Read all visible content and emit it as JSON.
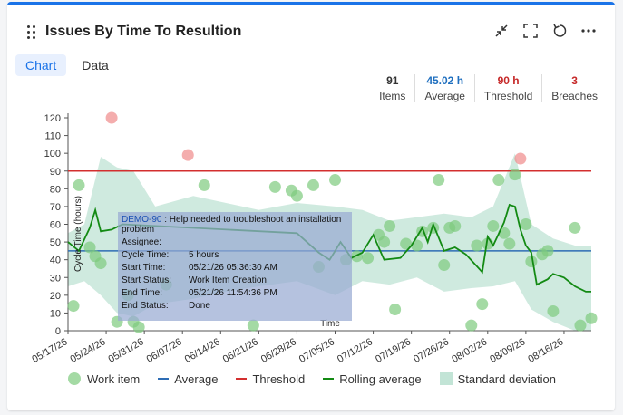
{
  "widget": {
    "title": "Issues By Time To Resultion"
  },
  "tabs": [
    {
      "label": "Chart",
      "active": true
    },
    {
      "label": "Data",
      "active": false
    }
  ],
  "stats": [
    {
      "value": "91",
      "label": "Items"
    },
    {
      "value": "45.02 h",
      "label": "Average"
    },
    {
      "value": "90 h",
      "label": "Threshold"
    },
    {
      "value": "3",
      "label": "Breaches"
    }
  ],
  "tooltip": {
    "id": "DEMO-90",
    "summary": ": Help needed to troubleshoot an installation problem",
    "rows": [
      {
        "k": "Assignee:",
        "v": ""
      },
      {
        "k": "Cycle Time:",
        "v": "5 hours"
      },
      {
        "k": "Start Time:",
        "v": "05/21/26 05:36:30 AM"
      },
      {
        "k": "Start Status:",
        "v": "Work Item Creation"
      },
      {
        "k": "End Time:",
        "v": "05/21/26 11:54:36 PM"
      },
      {
        "k": "End Status:",
        "v": "Done"
      }
    ]
  },
  "legend": [
    "Work item",
    "Average",
    "Threshold",
    "Rolling average",
    "Standard deviation"
  ],
  "colors": {
    "accent": "#1a73e8",
    "point": "#7dcb7d",
    "breach": "#f08a8a",
    "average": "#2e6db5",
    "threshold": "#d32f2f",
    "rolling": "#138a13",
    "std": "#a8d8c4"
  },
  "chart_data": {
    "type": "scatter",
    "ylabel": "Cycle Time (hours)",
    "xlabel": "Time",
    "ylim": [
      0,
      120
    ],
    "yticks": [
      0,
      10,
      20,
      30,
      40,
      50,
      60,
      70,
      80,
      90,
      100,
      110,
      120
    ],
    "xticks": [
      "05/17/26",
      "05/24/26",
      "05/31/26",
      "06/07/26",
      "06/14/26",
      "06/21/26",
      "06/28/26",
      "07/05/26",
      "07/12/26",
      "07/19/26",
      "07/26/26",
      "08/02/26",
      "08/09/26",
      "08/16/26"
    ],
    "x_start": "2026-05-17",
    "x_end": "2026-08-21",
    "average": 45.02,
    "threshold": 90,
    "points": [
      [
        "2026-05-18",
        14
      ],
      [
        "2026-05-19",
        82
      ],
      [
        "2026-05-21",
        47
      ],
      [
        "2026-05-22",
        42
      ],
      [
        "2026-05-23",
        38
      ],
      [
        "2026-05-25",
        120
      ],
      [
        "2026-05-26",
        5
      ],
      [
        "2026-05-28",
        20
      ],
      [
        "2026-05-29",
        5
      ],
      [
        "2026-05-30",
        2
      ],
      [
        "2026-06-04",
        26
      ],
      [
        "2026-06-08",
        99
      ],
      [
        "2026-06-11",
        82
      ],
      [
        "2026-06-20",
        3
      ],
      [
        "2026-06-24",
        81
      ],
      [
        "2026-06-27",
        79
      ],
      [
        "2026-06-28",
        76
      ],
      [
        "2026-07-01",
        82
      ],
      [
        "2026-07-02",
        36
      ],
      [
        "2026-07-05",
        85
      ],
      [
        "2026-07-07",
        40
      ],
      [
        "2026-07-09",
        42
      ],
      [
        "2026-07-11",
        41
      ],
      [
        "2026-07-13",
        54
      ],
      [
        "2026-07-14",
        50
      ],
      [
        "2026-07-15",
        59
      ],
      [
        "2026-07-16",
        12
      ],
      [
        "2026-07-18",
        49
      ],
      [
        "2026-07-20",
        48
      ],
      [
        "2026-07-21",
        56
      ],
      [
        "2026-07-23",
        58
      ],
      [
        "2026-07-24",
        85
      ],
      [
        "2026-07-25",
        37
      ],
      [
        "2026-07-26",
        58
      ],
      [
        "2026-07-27",
        59
      ],
      [
        "2026-07-30",
        3
      ],
      [
        "2026-07-31",
        48
      ],
      [
        "2026-08-01",
        15
      ],
      [
        "2026-08-02",
        49
      ],
      [
        "2026-08-03",
        59
      ],
      [
        "2026-08-04",
        85
      ],
      [
        "2026-08-05",
        55
      ],
      [
        "2026-08-06",
        49
      ],
      [
        "2026-08-07",
        88
      ],
      [
        "2026-08-08",
        97
      ],
      [
        "2026-08-09",
        60
      ],
      [
        "2026-08-10",
        39
      ],
      [
        "2026-08-12",
        43
      ],
      [
        "2026-08-13",
        45
      ],
      [
        "2026-08-14",
        11
      ],
      [
        "2026-08-18",
        58
      ],
      [
        "2026-08-19",
        3
      ],
      [
        "2026-08-21",
        7
      ]
    ],
    "rolling_average": [
      [
        "2026-05-17",
        50
      ],
      [
        "2026-05-19",
        45
      ],
      [
        "2026-05-21",
        58
      ],
      [
        "2026-05-22",
        68
      ],
      [
        "2026-05-23",
        56
      ],
      [
        "2026-05-25",
        57
      ],
      [
        "2026-05-27",
        60
      ],
      [
        "2026-06-28",
        55
      ],
      [
        "2026-07-02",
        44
      ],
      [
        "2026-07-04",
        40
      ],
      [
        "2026-07-06",
        50
      ],
      [
        "2026-07-08",
        41
      ],
      [
        "2026-07-10",
        44
      ],
      [
        "2026-07-12",
        54
      ],
      [
        "2026-07-14",
        40
      ],
      [
        "2026-07-17",
        41
      ],
      [
        "2026-07-19",
        48
      ],
      [
        "2026-07-21",
        58
      ],
      [
        "2026-07-22",
        50
      ],
      [
        "2026-07-23",
        60
      ],
      [
        "2026-07-25",
        45
      ],
      [
        "2026-07-27",
        47
      ],
      [
        "2026-07-29",
        43
      ],
      [
        "2026-08-01",
        33
      ],
      [
        "2026-08-02",
        53
      ],
      [
        "2026-08-03",
        48
      ],
      [
        "2026-08-05",
        61
      ],
      [
        "2026-08-06",
        71
      ],
      [
        "2026-08-07",
        70
      ],
      [
        "2026-08-08",
        57
      ],
      [
        "2026-08-09",
        48
      ],
      [
        "2026-08-10",
        44
      ],
      [
        "2026-08-11",
        26
      ],
      [
        "2026-08-13",
        29
      ],
      [
        "2026-08-14",
        32
      ],
      [
        "2026-08-16",
        30
      ],
      [
        "2026-08-18",
        25
      ],
      [
        "2026-08-20",
        22
      ],
      [
        "2026-08-21",
        22
      ]
    ],
    "std_upper": [
      [
        "2026-05-17",
        55
      ],
      [
        "2026-05-20",
        60
      ],
      [
        "2026-05-23",
        98
      ],
      [
        "2026-05-26",
        92
      ],
      [
        "2026-05-29",
        90
      ],
      [
        "2026-06-02",
        70
      ],
      [
        "2026-06-09",
        76
      ],
      [
        "2026-06-15",
        72
      ],
      [
        "2026-06-21",
        68
      ],
      [
        "2026-06-28",
        72
      ],
      [
        "2026-07-05",
        70
      ],
      [
        "2026-07-10",
        68
      ],
      [
        "2026-07-15",
        62
      ],
      [
        "2026-07-20",
        64
      ],
      [
        "2026-07-25",
        66
      ],
      [
        "2026-07-30",
        64
      ],
      [
        "2026-08-03",
        70
      ],
      [
        "2026-08-07",
        100
      ],
      [
        "2026-08-10",
        60
      ],
      [
        "2026-08-14",
        52
      ],
      [
        "2026-08-18",
        48
      ],
      [
        "2026-08-21",
        48
      ]
    ],
    "std_lower": [
      [
        "2026-05-17",
        25
      ],
      [
        "2026-05-20",
        28
      ],
      [
        "2026-05-23",
        20
      ],
      [
        "2026-05-26",
        10
      ],
      [
        "2026-05-29",
        8
      ],
      [
        "2026-06-02",
        15
      ],
      [
        "2026-06-09",
        18
      ],
      [
        "2026-06-15",
        22
      ],
      [
        "2026-06-21",
        25
      ],
      [
        "2026-06-28",
        28
      ],
      [
        "2026-07-05",
        20
      ],
      [
        "2026-07-10",
        28
      ],
      [
        "2026-07-15",
        26
      ],
      [
        "2026-07-20",
        30
      ],
      [
        "2026-07-25",
        22
      ],
      [
        "2026-07-30",
        24
      ],
      [
        "2026-08-03",
        25
      ],
      [
        "2026-08-07",
        28
      ],
      [
        "2026-08-10",
        12
      ],
      [
        "2026-08-14",
        5
      ],
      [
        "2026-08-18",
        0
      ],
      [
        "2026-08-21",
        0
      ]
    ],
    "legend": [
      "Work item",
      "Average",
      "Threshold",
      "Rolling average",
      "Standard deviation"
    ]
  }
}
